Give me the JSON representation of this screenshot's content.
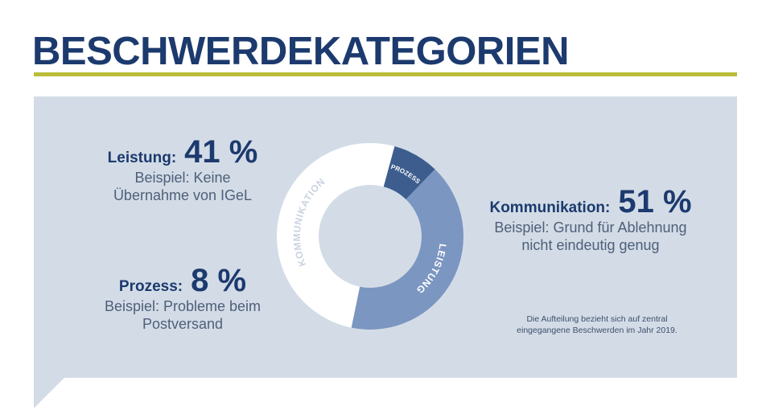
{
  "title": "BESCHWERDEKATEGORIEN",
  "footnote": [
    "Die Aufteilung bezieht sich auf zentral",
    "eingegangene Beschwerden im Jahr 2019."
  ],
  "colors": {
    "title": "#1c3a6e",
    "rule": "#b9bd3a",
    "panel": "#d3dce6",
    "leistung": "#7b96c1",
    "prozess": "#3c5d8e",
    "kommunikation": "#ffffff"
  },
  "chart_data": {
    "type": "pie",
    "style": "donut",
    "title": "BESCHWERDEKATEGORIEN",
    "slices": [
      {
        "label": "Leistung",
        "ring_label": "LEISTUNG",
        "value": 41,
        "pct_text": "41 %",
        "example": [
          "Beispiel: Keine",
          "Übernahme von IGeL"
        ]
      },
      {
        "label": "Kommunikation",
        "ring_label": "KOMMUNIKATION",
        "value": 51,
        "pct_text": "51 %",
        "example": [
          "Beispiel: Grund für Ablehnung",
          "nicht eindeutig genug"
        ]
      },
      {
        "label": "Prozess",
        "ring_label": "PROZESS",
        "value": 8,
        "pct_text": "8 %",
        "example": [
          "Beispiel: Probleme beim",
          "Postversand"
        ]
      }
    ]
  }
}
